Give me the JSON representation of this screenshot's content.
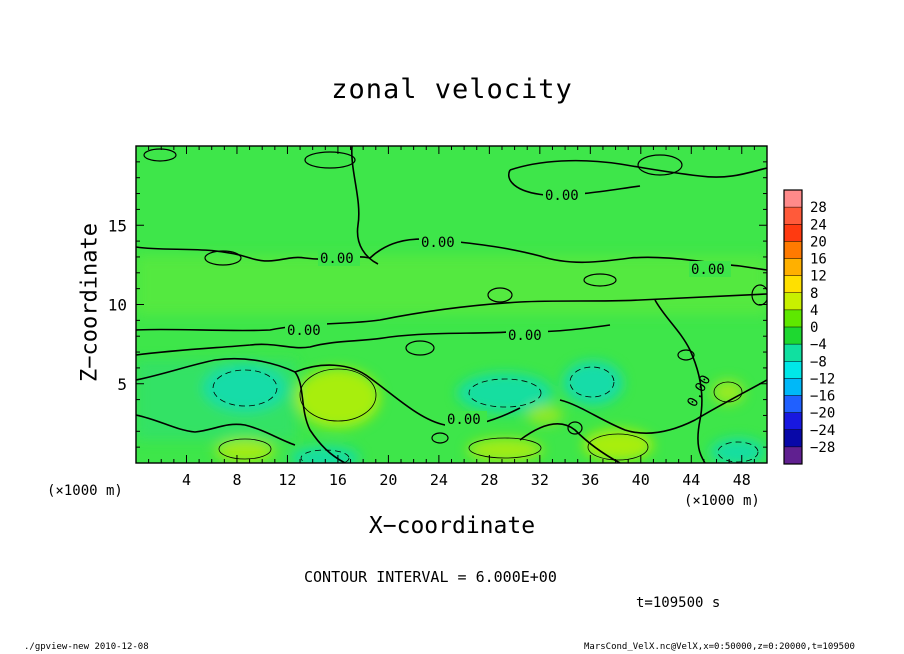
{
  "chart_data": {
    "type": "heatmap",
    "title": "zonal velocity",
    "xlabel": "X−coordinate",
    "ylabel": "Z−coordinate",
    "x_unit": "(×1000 m)",
    "y_unit": "(×1000 m)",
    "xlim": [
      0,
      50
    ],
    "ylim": [
      0,
      20
    ],
    "x_ticks": [
      "4",
      "8",
      "12",
      "16",
      "20",
      "24",
      "28",
      "32",
      "36",
      "40",
      "44",
      "48"
    ],
    "y_ticks": [
      "5",
      "10",
      "15"
    ],
    "colorbar_labels": [
      "28",
      "24",
      "20",
      "16",
      "12",
      "8",
      "4",
      "0",
      "−4",
      "−8",
      "−12",
      "−16",
      "−20",
      "−24",
      "−28"
    ],
    "colorbar_colors": [
      "#ff8a8a",
      "#ff5a3a",
      "#ff3a10",
      "#ff7a00",
      "#ffb000",
      "#ffe000",
      "#c8f000",
      "#5ee800",
      "#1ed830",
      "#10e0a0",
      "#00e8e8",
      "#00b8f8",
      "#2060ff",
      "#1818e0",
      "#0808a8",
      "#602090"
    ],
    "contour_labels": [
      "0.00",
      "0.00",
      "0.00",
      "0.00",
      "0.00",
      "0.00",
      "0.00",
      "0.00"
    ],
    "contour_interval": "CONTOUR INTERVAL = 6.000E+00",
    "time": "t=109500 s",
    "grid": false,
    "legend": "right"
  },
  "footer": {
    "left": "./gpview-new  2010-12-08",
    "right": "MarsCond_VelX.nc@VelX,x=0:50000,z=0:20000,t=109500"
  }
}
